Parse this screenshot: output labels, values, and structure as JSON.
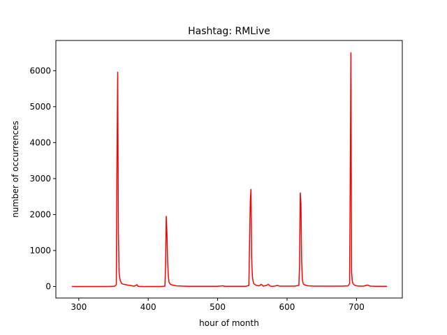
{
  "chart_data": {
    "type": "line",
    "title": "Hashtag: RMLive",
    "xlabel": "hour of month",
    "ylabel": "number of occurrences",
    "xlim": [
      267,
      766
    ],
    "ylim": [
      -320,
      6840
    ],
    "xticks": [
      300,
      400,
      500,
      600,
      700
    ],
    "yticks": [
      0,
      1000,
      2000,
      3000,
      4000,
      5000,
      6000
    ],
    "grid": false,
    "legend": "none",
    "series": [
      {
        "color": "#ff0000",
        "x": [
          290,
          300,
          320,
          340,
          350,
          352,
          354,
          355,
          356,
          357,
          358,
          359,
          360,
          362,
          365,
          370,
          380,
          384,
          385,
          386,
          390,
          400,
          410,
          420,
          424,
          425,
          426,
          427,
          428,
          429,
          430,
          432,
          435,
          440,
          450,
          460,
          470,
          480,
          490,
          500,
          508,
          510,
          520,
          530,
          540,
          545,
          547,
          548,
          549,
          550,
          551,
          552,
          554,
          556,
          560,
          563,
          566,
          570,
          573,
          576,
          580,
          586,
          590,
          600,
          610,
          617,
          618,
          619,
          620,
          621,
          622,
          623,
          624,
          626,
          630,
          640,
          650,
          660,
          670,
          680,
          688,
          690,
          691,
          692,
          693,
          694,
          695,
          697,
          700,
          705,
          710,
          716,
          720,
          730,
          740,
          744
        ],
        "values": [
          0,
          0,
          0,
          0,
          5,
          10,
          50,
          3500,
          5960,
          1500,
          400,
          250,
          150,
          80,
          60,
          40,
          10,
          50,
          10,
          5,
          0,
          0,
          0,
          0,
          10,
          600,
          1950,
          1500,
          700,
          300,
          120,
          60,
          40,
          20,
          10,
          5,
          5,
          5,
          5,
          5,
          20,
          5,
          5,
          5,
          5,
          30,
          2350,
          2700,
          800,
          300,
          150,
          80,
          50,
          30,
          20,
          60,
          10,
          30,
          60,
          10,
          5,
          30,
          10,
          10,
          10,
          30,
          600,
          2600,
          2300,
          700,
          200,
          100,
          60,
          40,
          20,
          10,
          10,
          10,
          10,
          10,
          20,
          80,
          3000,
          6500,
          400,
          150,
          80,
          40,
          20,
          10,
          10,
          40,
          10,
          5,
          5,
          5
        ]
      }
    ]
  }
}
